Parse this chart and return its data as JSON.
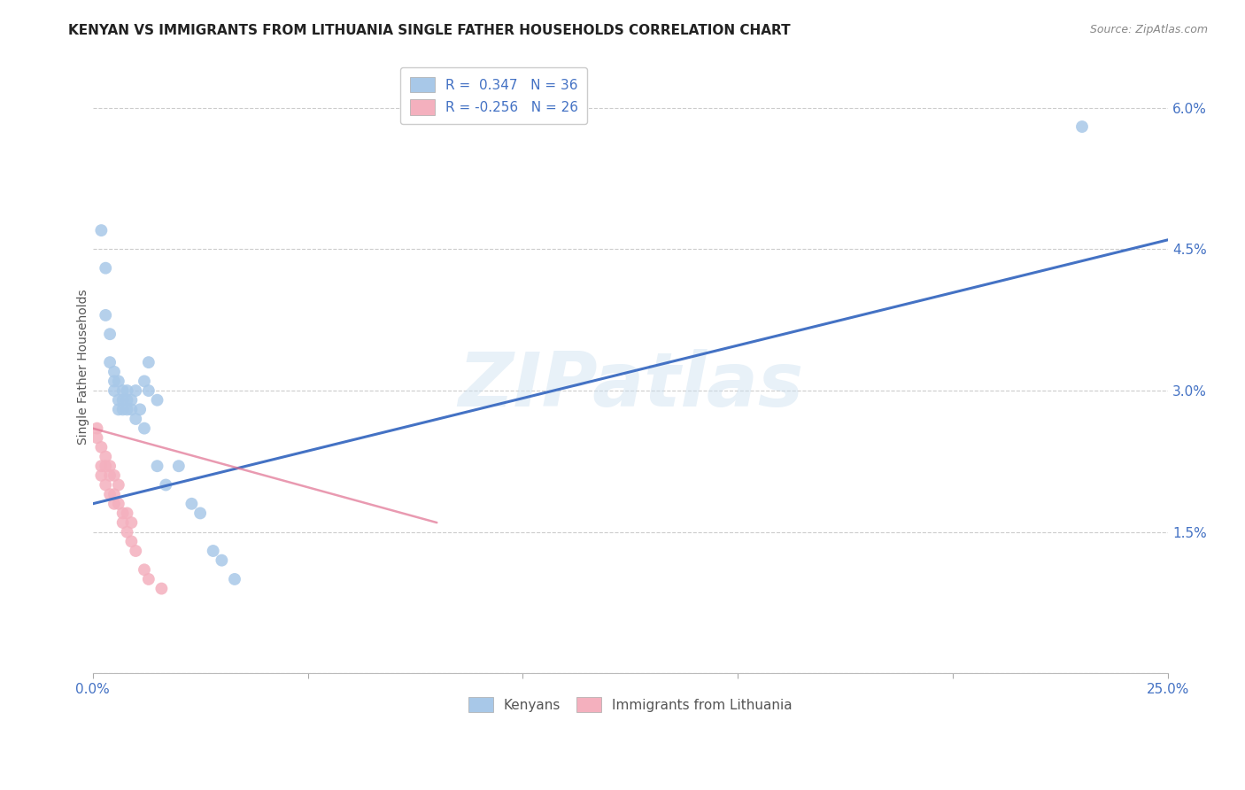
{
  "title": "KENYAN VS IMMIGRANTS FROM LITHUANIA SINGLE FATHER HOUSEHOLDS CORRELATION CHART",
  "source": "Source: ZipAtlas.com",
  "ylabel": "Single Father Households",
  "xlim": [
    0.0,
    0.25
  ],
  "ylim": [
    0.0,
    0.065
  ],
  "xticks": [
    0.0,
    0.05,
    0.1,
    0.15,
    0.2,
    0.25
  ],
  "xticklabels": [
    "0.0%",
    "",
    "",
    "",
    "",
    "25.0%"
  ],
  "yticks": [
    0.0,
    0.015,
    0.03,
    0.045,
    0.06
  ],
  "yticklabels": [
    "",
    "1.5%",
    "3.0%",
    "4.5%",
    "6.0%"
  ],
  "kenyan_scatter": [
    [
      0.002,
      0.047
    ],
    [
      0.003,
      0.043
    ],
    [
      0.003,
      0.038
    ],
    [
      0.004,
      0.036
    ],
    [
      0.004,
      0.033
    ],
    [
      0.005,
      0.032
    ],
    [
      0.005,
      0.031
    ],
    [
      0.005,
      0.03
    ],
    [
      0.006,
      0.031
    ],
    [
      0.006,
      0.029
    ],
    [
      0.006,
      0.028
    ],
    [
      0.007,
      0.03
    ],
    [
      0.007,
      0.029
    ],
    [
      0.007,
      0.028
    ],
    [
      0.008,
      0.03
    ],
    [
      0.008,
      0.029
    ],
    [
      0.008,
      0.028
    ],
    [
      0.009,
      0.029
    ],
    [
      0.009,
      0.028
    ],
    [
      0.01,
      0.03
    ],
    [
      0.01,
      0.027
    ],
    [
      0.011,
      0.028
    ],
    [
      0.012,
      0.031
    ],
    [
      0.012,
      0.026
    ],
    [
      0.013,
      0.033
    ],
    [
      0.013,
      0.03
    ],
    [
      0.015,
      0.029
    ],
    [
      0.015,
      0.022
    ],
    [
      0.017,
      0.02
    ],
    [
      0.02,
      0.022
    ],
    [
      0.023,
      0.018
    ],
    [
      0.025,
      0.017
    ],
    [
      0.028,
      0.013
    ],
    [
      0.03,
      0.012
    ],
    [
      0.033,
      0.01
    ],
    [
      0.23,
      0.058
    ]
  ],
  "lithuania_scatter": [
    [
      0.001,
      0.026
    ],
    [
      0.001,
      0.025
    ],
    [
      0.002,
      0.024
    ],
    [
      0.002,
      0.022
    ],
    [
      0.002,
      0.021
    ],
    [
      0.003,
      0.023
    ],
    [
      0.003,
      0.022
    ],
    [
      0.003,
      0.02
    ],
    [
      0.004,
      0.022
    ],
    [
      0.004,
      0.021
    ],
    [
      0.004,
      0.019
    ],
    [
      0.005,
      0.021
    ],
    [
      0.005,
      0.019
    ],
    [
      0.005,
      0.018
    ],
    [
      0.006,
      0.02
    ],
    [
      0.006,
      0.018
    ],
    [
      0.007,
      0.017
    ],
    [
      0.007,
      0.016
    ],
    [
      0.008,
      0.017
    ],
    [
      0.008,
      0.015
    ],
    [
      0.009,
      0.016
    ],
    [
      0.009,
      0.014
    ],
    [
      0.01,
      0.013
    ],
    [
      0.012,
      0.011
    ],
    [
      0.013,
      0.01
    ],
    [
      0.016,
      0.009
    ]
  ],
  "kenyan_line_x": [
    0.0,
    0.25
  ],
  "kenyan_line_y": [
    0.018,
    0.046
  ],
  "lithuania_line_x": [
    0.0,
    0.08
  ],
  "lithuania_line_y": [
    0.026,
    0.016
  ],
  "kenyan_color": "#a8c8e8",
  "lithuania_color": "#f4b0be",
  "kenyan_line_color": "#4472c4",
  "lithuania_line_color": "#e07090",
  "scatter_size": 100,
  "background_color": "#ffffff",
  "watermark_text": "ZIPatlas",
  "title_fontsize": 11,
  "axis_label_fontsize": 10,
  "tick_fontsize": 11,
  "legend_fontsize": 11,
  "source_fontsize": 9
}
